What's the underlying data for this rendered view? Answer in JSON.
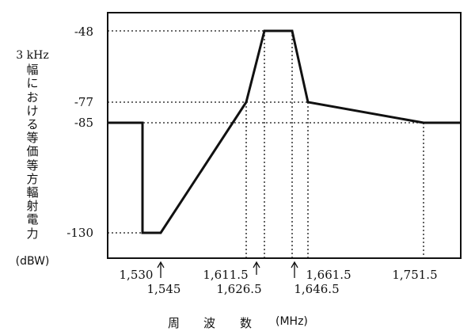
{
  "chart_data": {
    "type": "line",
    "y_axis_label_top": "3 kHz",
    "y_axis_label_chars": [
      "幅",
      "に",
      "お",
      "け",
      "る",
      "等",
      "価",
      "等",
      "方",
      "輻",
      "射",
      "電",
      "力"
    ],
    "y_axis_unit": "(dBW)",
    "x_axis_label_chars": [
      "周",
      "波",
      "数"
    ],
    "x_axis_unit": "(MHz)",
    "y_ticks": [
      "-48",
      "-77",
      "-85",
      "-130"
    ],
    "x_ticks": [
      "1,530",
      "1,545",
      "1,611.5",
      "1,626.5",
      "1,646.5",
      "1,661.5",
      "1,751.5"
    ],
    "points": [
      {
        "x": 1490,
        "y": -85
      },
      {
        "x": 1530,
        "y": -85
      },
      {
        "x": 1530,
        "y": -130
      },
      {
        "x": 1545,
        "y": -130
      },
      {
        "x": 1611.5,
        "y": -77
      },
      {
        "x": 1626.5,
        "y": -48
      },
      {
        "x": 1646.5,
        "y": -48
      },
      {
        "x": 1661.5,
        "y": -77
      },
      {
        "x": 1751.5,
        "y": -85
      },
      {
        "x": 1800,
        "y": -85
      }
    ],
    "xlim": [
      1490,
      1800
    ],
    "ylim": [
      -139,
      -41
    ]
  }
}
